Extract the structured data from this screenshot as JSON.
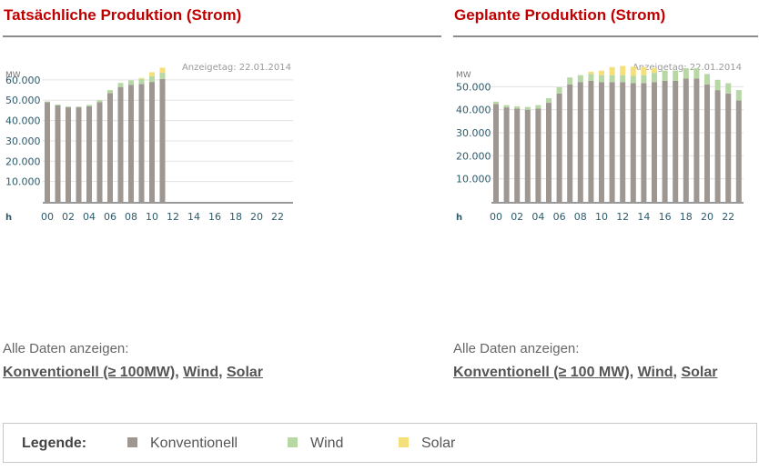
{
  "colors": {
    "title": "#c00000",
    "konventionell": "#9e9690",
    "wind": "#b7d8a5",
    "solar": "#f5df7a",
    "grid": "#e3e3e3",
    "axis_text": "#2d5a6b",
    "link_text": "#555555"
  },
  "left": {
    "title": "Tatsächliche Produktion (Strom)",
    "all_data_label": "Alle Daten anzeigen:",
    "links": [
      {
        "label": "Konventionell (≥ 100MW)"
      },
      {
        "label": "Wind"
      },
      {
        "label": "Solar"
      }
    ]
  },
  "right": {
    "title": "Geplante Produktion (Strom)",
    "all_data_label": "Alle Daten anzeigen:",
    "links": [
      {
        "label": "Konventionell (≥ 100 MW)"
      },
      {
        "label": "Wind"
      },
      {
        "label": "Solar"
      }
    ]
  },
  "separator": ",",
  "legend": {
    "title": "Legende:",
    "items": [
      {
        "label": "Konventionell",
        "color": "#9e9690"
      },
      {
        "label": "Wind",
        "color": "#b7d8a5"
      },
      {
        "label": "Solar",
        "color": "#f5df7a"
      }
    ]
  },
  "chart_data": [
    {
      "type": "bar",
      "stacked": true,
      "annotation": "Anzeigetag: 22.01.2014",
      "ylabel": "MW",
      "xlabel": "h",
      "ylim": [
        0,
        68000
      ],
      "y_ticks": [
        10000,
        20000,
        30000,
        40000,
        50000,
        60000
      ],
      "y_tick_labels": [
        "10.000",
        "20.000",
        "30.000",
        "40.000",
        "50.000",
        "60.000"
      ],
      "x_tick_labels": [
        "00",
        "02",
        "04",
        "06",
        "08",
        "10",
        "12",
        "14",
        "16",
        "18",
        "20",
        "22"
      ],
      "categories": [
        "0",
        "1",
        "2",
        "3",
        "4",
        "5",
        "6",
        "7",
        "8",
        "9",
        "10",
        "11",
        "12",
        "13",
        "14",
        "15",
        "16",
        "17",
        "18",
        "19",
        "20",
        "21",
        "22",
        "23"
      ],
      "grid": true,
      "series": [
        {
          "name": "Konventionell",
          "values": [
            49000,
            47500,
            46500,
            46500,
            47000,
            49000,
            53500,
            56500,
            57500,
            58000,
            59000,
            60500,
            null,
            null,
            null,
            null,
            null,
            null,
            null,
            null,
            null,
            null,
            null,
            null
          ]
        },
        {
          "name": "Wind",
          "values": [
            400,
            400,
            400,
            400,
            700,
            1000,
            1500,
            2000,
            2300,
            2500,
            2800,
            3000,
            null,
            null,
            null,
            null,
            null,
            null,
            null,
            null,
            null,
            null,
            null,
            null
          ]
        },
        {
          "name": "Solar",
          "values": [
            0,
            0,
            0,
            0,
            0,
            0,
            0,
            0,
            0,
            500,
            2000,
            2500,
            null,
            null,
            null,
            null,
            null,
            null,
            null,
            null,
            null,
            null,
            null,
            null
          ]
        }
      ]
    },
    {
      "type": "bar",
      "stacked": true,
      "annotation": "Anzeigetag: 22.01.2014",
      "ylabel": "MW",
      "xlabel": "h",
      "ylim": [
        0,
        60000
      ],
      "y_ticks": [
        10000,
        20000,
        30000,
        40000,
        50000
      ],
      "y_tick_labels": [
        "10.000",
        "20.000",
        "30.000",
        "40.000",
        "50.000"
      ],
      "x_tick_labels": [
        "00",
        "02",
        "04",
        "06",
        "08",
        "10",
        "12",
        "14",
        "16",
        "18",
        "20",
        "22"
      ],
      "categories": [
        "0",
        "1",
        "2",
        "3",
        "4",
        "5",
        "6",
        "7",
        "8",
        "9",
        "10",
        "11",
        "12",
        "13",
        "14",
        "15",
        "16",
        "17",
        "18",
        "19",
        "20",
        "21",
        "22",
        "23"
      ],
      "grid": true,
      "series": [
        {
          "name": "Konventionell",
          "values": [
            42500,
            41000,
            40500,
            40000,
            40500,
            43000,
            47000,
            51000,
            52000,
            52500,
            52000,
            52000,
            52000,
            51500,
            51500,
            52000,
            52500,
            52500,
            53500,
            53500,
            51000,
            48500,
            47000,
            44000
          ]
        },
        {
          "name": "Wind",
          "values": [
            1000,
            1000,
            1000,
            1200,
            1500,
            2000,
            2800,
            3000,
            3000,
            3000,
            3000,
            3000,
            3000,
            3200,
            3500,
            4000,
            4500,
            4500,
            4500,
            4500,
            4500,
            4500,
            4500,
            4500
          ]
        },
        {
          "name": "Solar",
          "values": [
            0,
            0,
            0,
            0,
            0,
            0,
            0,
            0,
            0,
            1000,
            2000,
            3500,
            4000,
            4000,
            3500,
            2000,
            0,
            0,
            0,
            0,
            0,
            0,
            0,
            0
          ]
        }
      ]
    }
  ]
}
